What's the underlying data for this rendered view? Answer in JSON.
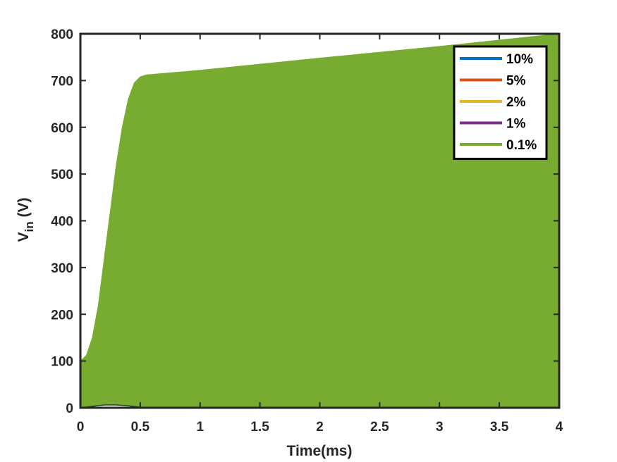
{
  "chart_data": {
    "type": "area",
    "xlabel": "Time(ms)",
    "ylabel": {
      "main": "V",
      "subscript": "in",
      "unit": " (V)"
    },
    "xlim": [
      0,
      4
    ],
    "ylim": [
      0,
      800
    ],
    "xticks": [
      0,
      0.5,
      1,
      1.5,
      2,
      2.5,
      3,
      3.5,
      4
    ],
    "xtick_labels": [
      "0",
      "0.5",
      "1",
      "1.5",
      "2",
      "2.5",
      "3",
      "3.5",
      "4"
    ],
    "yticks": [
      0,
      100,
      200,
      300,
      400,
      500,
      600,
      700,
      800
    ],
    "ytick_labels": [
      "0",
      "100",
      "200",
      "300",
      "400",
      "500",
      "600",
      "700",
      "800"
    ],
    "grid": false,
    "legend_position": "top-right",
    "series": [
      {
        "name": "10%",
        "color": "#0072BD",
        "upper": [],
        "lower": []
      },
      {
        "name": "5%",
        "color": "#D95319",
        "upper": [],
        "lower": []
      },
      {
        "name": "2%",
        "color": "#EDB120",
        "upper": [],
        "lower": []
      },
      {
        "name": "1%",
        "color": "#7E2F8E",
        "upper": [],
        "lower": []
      },
      {
        "name": "0.1%",
        "color": "#77AC30",
        "upper": [
          {
            "x": 0,
            "y": 100
          },
          {
            "x": 0.05,
            "y": 112
          },
          {
            "x": 0.1,
            "y": 150
          },
          {
            "x": 0.15,
            "y": 220
          },
          {
            "x": 0.2,
            "y": 320
          },
          {
            "x": 0.25,
            "y": 420
          },
          {
            "x": 0.3,
            "y": 520
          },
          {
            "x": 0.35,
            "y": 600
          },
          {
            "x": 0.4,
            "y": 660
          },
          {
            "x": 0.45,
            "y": 695
          },
          {
            "x": 0.5,
            "y": 708
          },
          {
            "x": 0.55,
            "y": 712
          },
          {
            "x": 1,
            "y": 722
          },
          {
            "x": 2,
            "y": 748
          },
          {
            "x": 3,
            "y": 773
          },
          {
            "x": 4,
            "y": 800
          }
        ],
        "lower": [
          {
            "x": 0,
            "y": 0
          },
          {
            "x": 0.1,
            "y": 3
          },
          {
            "x": 0.2,
            "y": 6
          },
          {
            "x": 0.3,
            "y": 6
          },
          {
            "x": 0.4,
            "y": 4
          },
          {
            "x": 0.5,
            "y": 1
          },
          {
            "x": 0.55,
            "y": 0
          },
          {
            "x": 4,
            "y": 0
          }
        ]
      }
    ]
  }
}
